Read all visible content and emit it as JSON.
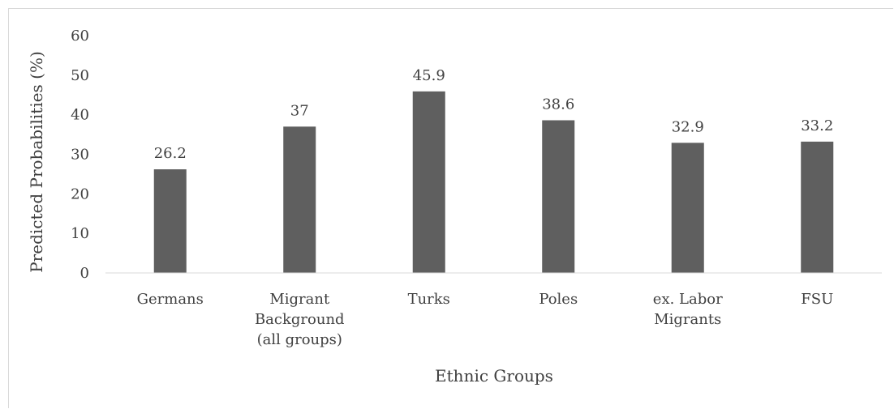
{
  "chart_data": {
    "type": "bar",
    "categories": [
      [
        "Germans"
      ],
      [
        "Migrant",
        "Background",
        "(all groups)"
      ],
      [
        "Turks"
      ],
      [
        "Poles"
      ],
      [
        "ex. Labor",
        "Migrants"
      ],
      [
        "FSU"
      ]
    ],
    "values": [
      26.2,
      37,
      45.9,
      38.6,
      32.9,
      33.2
    ],
    "data_labels": [
      "26.2",
      "37",
      "45.9",
      "38.6",
      "32.9",
      "33.2"
    ],
    "title": "",
    "xlabel": "Ethnic Groups",
    "ylabel": "Predicted Probabilities (%)",
    "ylim": [
      0,
      60
    ],
    "yticks": [
      0,
      10,
      20,
      30,
      40,
      50,
      60
    ],
    "grid": false,
    "legend": "none",
    "bar_color": "#5f5f5f",
    "axis_color": "#d9d9d9",
    "text_color": "#404040"
  }
}
